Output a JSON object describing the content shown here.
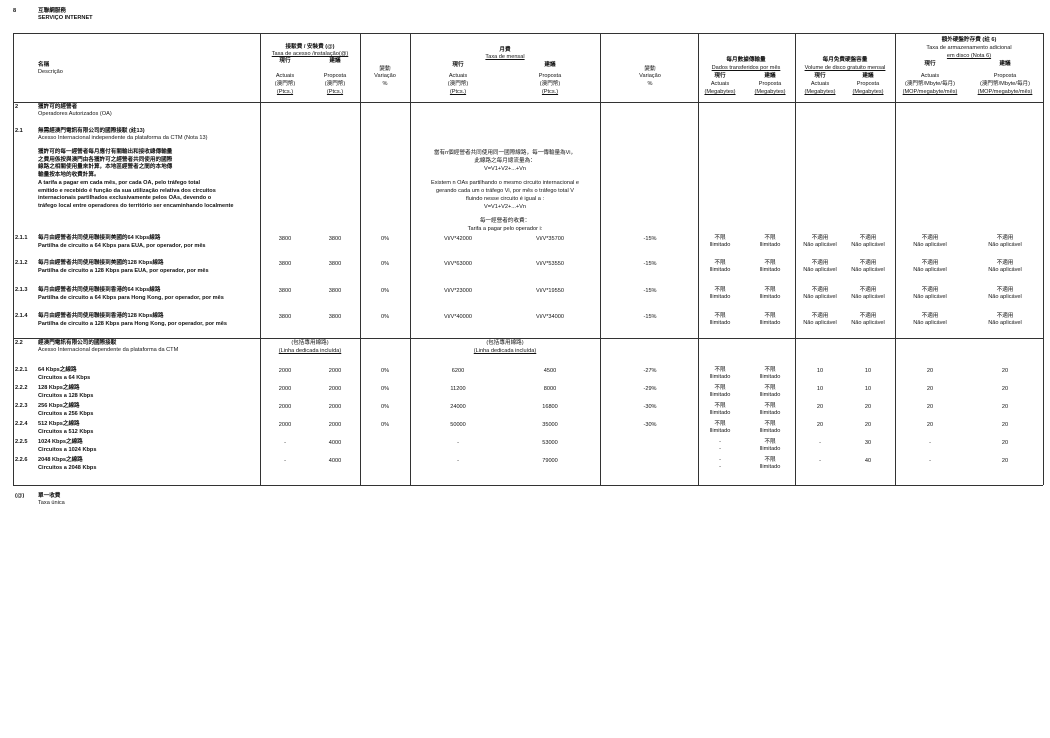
{
  "section": {
    "number": "8",
    "title_zh": "互聯網服務",
    "title_pt": "SERVIÇO INTERNET"
  },
  "header": {
    "description": {
      "zh": "名稱",
      "pt": "Descrição"
    },
    "installation": {
      "zh": "接駁費 / 安裝費 (@)",
      "pt": "Taxa de acesso /instalação(@)",
      "actual_zh": "現行",
      "proposed_zh": "建議",
      "actual_pt": "Actuais",
      "proposed_pt": "Proposta",
      "unit_zh": "(澳門幣)",
      "unit_pt": "(Ptcs.)"
    },
    "variation": {
      "zh": "變動",
      "pt": "Variação",
      "unit": "%"
    },
    "monthly": {
      "zh": "月費",
      "pt": "Taxa de mensal",
      "actual_zh": "現行",
      "proposed_zh": "建議",
      "actual_pt": "Actuais",
      "proposed_pt": "Proposta",
      "unit_zh": "(澳門幣)",
      "unit_pt": "(Ptcs.)"
    },
    "variation2": {
      "zh": "變動",
      "pt": "Variação",
      "unit": "%"
    },
    "data_transfer": {
      "zh": "每月數據傳輸量",
      "pt": "Dados transferidos por mês",
      "actual_zh": "現行",
      "proposed_zh": "建議",
      "actual_pt": "Actuais",
      "proposed_pt": "Proposta",
      "unit": "(Megabytes)"
    },
    "disk_volume": {
      "zh": "每月免費硬盤容量",
      "pt": "Volume de disco gratuito mensal",
      "actual_zh": "現行",
      "proposed_zh": "建議",
      "actual_pt": "Actuais",
      "proposed_pt": "Proposta",
      "unit": "(Megabytes)"
    },
    "extra_storage": {
      "zh": "額外硬盤貯存費 (註 6)",
      "pt1": "Taxa de armazenamento adicional",
      "pt2": "em disco (Nota 6)",
      "actual_zh": "現行",
      "proposed_zh": "建議",
      "actual_pt": "Actuais",
      "proposed_pt": "Proposta",
      "unit_zh": "(澳門幣/Mbyte/每月)",
      "unit_pt": "(MOP/megabyte/mês)"
    }
  },
  "group2": {
    "number": "2",
    "zh": "獲許可的經營者",
    "pt": "Operadores Autorizados (OA)"
  },
  "group21": {
    "number": "2.1",
    "zh": "無需經澳門電訊有限公司的國際接駁 (註13)",
    "pt": "Acesso Internacional independente da plataforma da CTM (Nota 13)",
    "note_zh": [
      "獲許可的每一經營者每月應付有關輸出和接收總傳輸量",
      "之費用係按與澳門由各獲許可之經營者共同使用的國際",
      "線路之相關使用量來計算，本地區經營者之間的本地傳",
      "輸量按本地的收費計算。"
    ],
    "note_pt": [
      "A tarifa a pagar em cada mês, por cada OA, pelo tráfego total",
      "emitido e recebido é função da sua utilização relativa dos circuitos",
      "internacionais partilhados exclusivamente pelos OAs, devendo o",
      "tráfego local entre operadores do território ser encaminhando localmente"
    ],
    "formula_zh": [
      "當有n個經營者共同使用同一國際線路，每一傳輸量為Vi，",
      "此線路之每月總流量為：",
      "V=V1+V2+...+Vn"
    ],
    "formula_pt": [
      "Existem n OAs partilhando o mesmo circuito internacional e",
      "gerando cada um o tráfego Vi, por mês o tráfego total V",
      "fluindo nesse circuito é igual a :",
      "V=V1+V2+...+Vn"
    ],
    "tariff_zh": "每一經營者的收費：",
    "tariff_pt": "Tarifa a pagar pelo operador i:"
  },
  "rows21": [
    {
      "num": "2.1.1",
      "zh": "每月由經營者共同使用聯接到美國的64 Kbps線路",
      "pt": "Partilha de circuito a 64 Kbps para EUA, por operador, por mês",
      "ia": "3800",
      "ip": "3800",
      "v1": "0%",
      "ma": "Vi/V*42000",
      "mp": "Vi/V*35700",
      "v2": "-15%",
      "da": [
        "不限",
        "Ilimitado"
      ],
      "dp": [
        "不限",
        "Ilimitado"
      ],
      "ka": [
        "不適用",
        "Não aplicável"
      ],
      "kp": [
        "不適用",
        "Não aplicável"
      ],
      "ea": [
        "不適用",
        "Não aplicável"
      ],
      "ep": [
        "不適用",
        "Não aplicável"
      ]
    },
    {
      "num": "2.1.2",
      "zh": "每月由經營者共同使用聯接到美國的128 Kbps線路",
      "pt": "Partilha de circuito a 128 Kbps para EUA, por operador, por mês",
      "ia": "3800",
      "ip": "3800",
      "v1": "0%",
      "ma": "Vi/V*63000",
      "mp": "Vi/V*53550",
      "v2": "-15%",
      "da": [
        "不限",
        "Ilimitado"
      ],
      "dp": [
        "不限",
        "Ilimitado"
      ],
      "ka": [
        "不適用",
        "Não aplicável"
      ],
      "kp": [
        "不適用",
        "Não aplicável"
      ],
      "ea": [
        "不適用",
        "Não aplicável"
      ],
      "ep": [
        "不適用",
        "Não aplicável"
      ]
    },
    {
      "num": "2.1.3",
      "zh": "每月由經營者共同使用聯接到香港的64 Kbps線路",
      "pt": "Partilha de circuito a 64 Kbps para Hong Kong, por operador, por mês",
      "ia": "3800",
      "ip": "3800",
      "v1": "0%",
      "ma": "Vi/V*23000",
      "mp": "Vi/V*19550",
      "v2": "-15%",
      "da": [
        "不限",
        "Ilimitado"
      ],
      "dp": [
        "不限",
        "Ilimitado"
      ],
      "ka": [
        "不適用",
        "Não aplicável"
      ],
      "kp": [
        "不適用",
        "Não aplicável"
      ],
      "ea": [
        "不適用",
        "Não aplicável"
      ],
      "ep": [
        "不適用",
        "Não aplicável"
      ]
    },
    {
      "num": "2.1.4",
      "zh": "每月由經營者共同使用聯接到香港的128 Kbps線路",
      "pt": "Partilha de circuito a 128 Kbps para Hong Kong, por operador, por mês",
      "ia": "3800",
      "ip": "3800",
      "v1": "0%",
      "ma": "Vi/V*40000",
      "mp": "Vi/V*34000",
      "v2": "-15%",
      "da": [
        "不限",
        "Ilimitado"
      ],
      "dp": [
        "不限",
        "Ilimitado"
      ],
      "ka": [
        "不適用",
        "Não aplicável"
      ],
      "kp": [
        "不適用",
        "Não aplicável"
      ],
      "ea": [
        "不適用",
        "Não aplicável"
      ],
      "ep": [
        "不適用",
        "Não aplicável"
      ]
    }
  ],
  "group22": {
    "number": "2.2",
    "zh": "經澳門電訊有限公司的國際接駁",
    "pt": "Acesso Internacional dependente da plataforma da CTM",
    "incl_zh": "(包括專用線路)",
    "incl_pt": "(Linha dedicada incluída)"
  },
  "rows22": [
    {
      "num": "2.2.1",
      "zh": "64 Kbps之線路",
      "pt": "Circuitos a 64 Kbps",
      "ia": "2000",
      "ip": "2000",
      "v1": "0%",
      "ma": "6200",
      "mp": "4500",
      "v2": "-27%",
      "da": [
        "不限",
        "Ilimitado"
      ],
      "dp": [
        "不限",
        "Ilimitado"
      ],
      "ka": "10",
      "kp": "10",
      "ea": "20",
      "ep": "20"
    },
    {
      "num": "2.2.2",
      "zh": "128 Kbps之線路",
      "pt": "Circuitos a 128 Kbps",
      "ia": "2000",
      "ip": "2000",
      "v1": "0%",
      "ma": "11200",
      "mp": "8000",
      "v2": "-29%",
      "da": [
        "不限",
        "Ilimitado"
      ],
      "dp": [
        "不限",
        "Ilimitado"
      ],
      "ka": "10",
      "kp": "10",
      "ea": "20",
      "ep": "20"
    },
    {
      "num": "2.2.3",
      "zh": "256 Kbps之線路",
      "pt": "Circuitos a 256 Kbps",
      "ia": "2000",
      "ip": "2000",
      "v1": "0%",
      "ma": "24000",
      "mp": "16800",
      "v2": "-30%",
      "da": [
        "不限",
        "Ilimitado"
      ],
      "dp": [
        "不限",
        "Ilimitado"
      ],
      "ka": "20",
      "kp": "20",
      "ea": "20",
      "ep": "20"
    },
    {
      "num": "2.2.4",
      "zh": "512 Kbps之線路",
      "pt": "Circuitos a 512 Kbps",
      "ia": "2000",
      "ip": "2000",
      "v1": "0%",
      "ma": "50000",
      "mp": "35000",
      "v2": "-30%",
      "da": [
        "不限",
        "Ilimitado"
      ],
      "dp": [
        "不限",
        "Ilimitado"
      ],
      "ka": "20",
      "kp": "20",
      "ea": "20",
      "ep": "20"
    },
    {
      "num": "2.2.5",
      "zh": "1024 Kbps之線路",
      "pt": "Circuitos a 1024 Kbps",
      "ia": "-",
      "ip": "4000",
      "v1": "",
      "ma": "-",
      "mp": "53000",
      "v2": "",
      "da": [
        "-",
        "-"
      ],
      "dp": [
        "不限",
        "Ilimitado"
      ],
      "ka": "-",
      "kp": "30",
      "ea": "-",
      "ep": "20"
    },
    {
      "num": "2.2.6",
      "zh": "2048 Kbps之線路",
      "pt": "Circuitos a 2048 Kbps",
      "ia": "-",
      "ip": "4000",
      "v1": "",
      "ma": "-",
      "mp": "79000",
      "v2": "",
      "da": [
        "-",
        "-"
      ],
      "dp": [
        "不限",
        "Ilimitado"
      ],
      "ka": "-",
      "kp": "40",
      "ea": "-",
      "ep": "20"
    }
  ],
  "footnote": {
    "mark": "(@)",
    "zh": "單一收費",
    "pt": "Taxa única"
  }
}
